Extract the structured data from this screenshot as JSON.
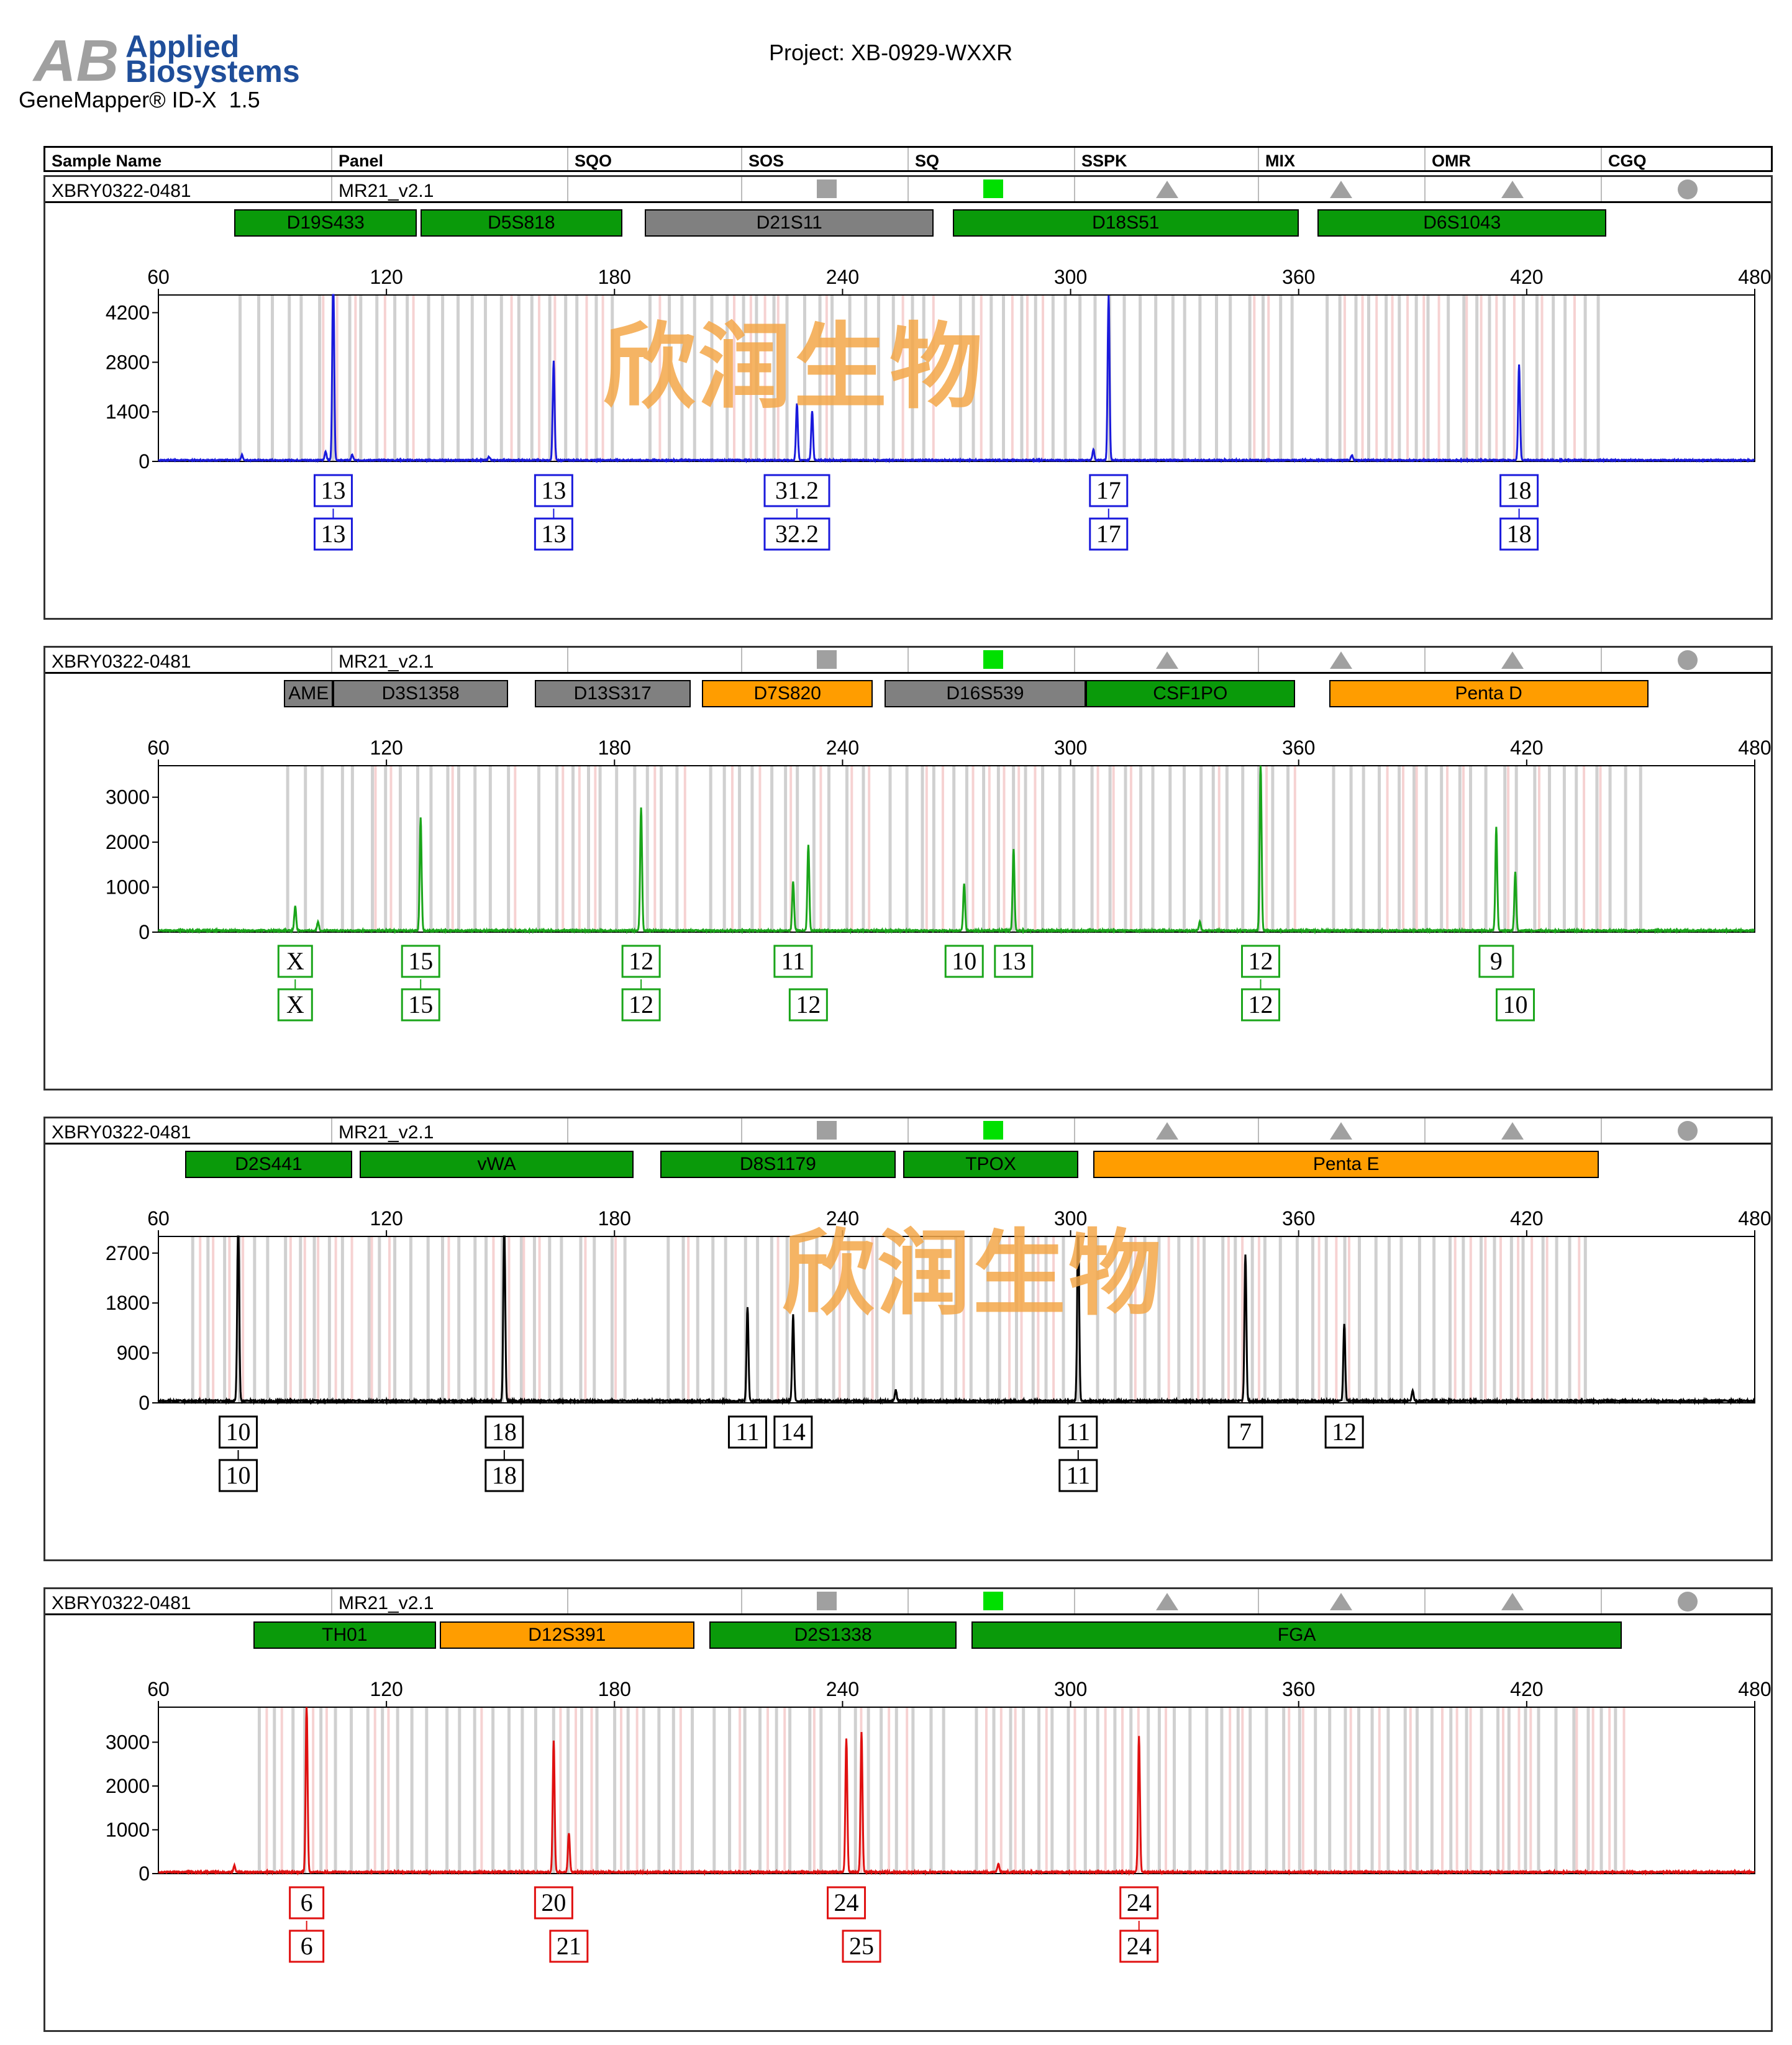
{
  "header": {
    "logo_line1": "Applied",
    "logo_line2": "Biosystems",
    "app": "GeneMapper® ID-X  1.5",
    "project": "Project: XB-0929-WXXR"
  },
  "columns": [
    "Sample Name",
    "Panel",
    "SQO",
    "SOS",
    "SQ",
    "SSPK",
    "MIX",
    "OMR",
    "CGQ"
  ],
  "watermark": "欣润生物",
  "colors": {
    "blue": "#1a1adc",
    "green": "#1aa51a",
    "black": "#000000",
    "red": "#e01010",
    "locus_green": "#0a9a0a",
    "locus_grey": "#808080",
    "locus_orange": "#ff9d00"
  },
  "chart_data": [
    {
      "type": "line",
      "dye": "blue",
      "sample": "XBRY0322-0481",
      "panel": "MR21_v2.1",
      "xlim": [
        60,
        480
      ],
      "x_ticks": [
        60,
        120,
        180,
        240,
        300,
        360,
        420,
        480
      ],
      "ylim": [
        0,
        4700
      ],
      "y_ticks": [
        0,
        1400,
        2800,
        4200
      ],
      "loci": [
        {
          "name": "D19S433",
          "range": [
            80,
            128
          ],
          "color": "locus_green"
        },
        {
          "name": "D5S818",
          "range": [
            129,
            182
          ],
          "color": "locus_green"
        },
        {
          "name": "D21S11",
          "range": [
            188,
            264
          ],
          "color": "locus_grey"
        },
        {
          "name": "D18S51",
          "range": [
            269,
            360
          ],
          "color": "locus_green"
        },
        {
          "name": "D6S1043",
          "range": [
            365,
            441
          ],
          "color": "locus_green"
        }
      ],
      "peaks": [
        [
          82,
          150
        ],
        [
          104,
          250
        ],
        [
          106,
          5400
        ],
        [
          111,
          150
        ],
        [
          147,
          100
        ],
        [
          164,
          2800
        ],
        [
          228,
          1600
        ],
        [
          232,
          1400
        ],
        [
          306,
          300
        ],
        [
          310,
          4650
        ],
        [
          374,
          150
        ],
        [
          418,
          2700
        ]
      ],
      "calls": [
        {
          "x": 106,
          "row1": "13",
          "row2": "13"
        },
        {
          "x": 164,
          "row1": "13",
          "row2": "13"
        },
        {
          "x": 228,
          "row1": "31.2",
          "row2": "32.2"
        },
        {
          "x": 310,
          "row1": "17",
          "row2": "17"
        },
        {
          "x": 418,
          "row1": "18",
          "row2": "18"
        }
      ]
    },
    {
      "type": "line",
      "dye": "green",
      "sample": "XBRY0322-0481",
      "panel": "MR21_v2.1",
      "xlim": [
        60,
        480
      ],
      "x_ticks": [
        60,
        120,
        180,
        240,
        300,
        360,
        420,
        480
      ],
      "ylim": [
        0,
        3700
      ],
      "y_ticks": [
        0,
        1000,
        2000,
        3000
      ],
      "loci": [
        {
          "name": "AME",
          "range": [
            93,
            106
          ],
          "color": "locus_grey"
        },
        {
          "name": "D3S1358",
          "range": [
            106,
            152
          ],
          "color": "locus_grey"
        },
        {
          "name": "D13S317",
          "range": [
            159,
            200
          ],
          "color": "locus_grey"
        },
        {
          "name": "D7S820",
          "range": [
            203,
            248
          ],
          "color": "locus_orange"
        },
        {
          "name": "D16S539",
          "range": [
            251,
            304
          ],
          "color": "locus_grey"
        },
        {
          "name": "CSF1PO",
          "range": [
            304,
            359
          ],
          "color": "locus_green"
        },
        {
          "name": "Penta D",
          "range": [
            368,
            452
          ],
          "color": "locus_orange"
        }
      ],
      "peaks": [
        [
          96,
          550
        ],
        [
          102,
          200
        ],
        [
          129,
          2500
        ],
        [
          187,
          2750
        ],
        [
          227,
          1100
        ],
        [
          231,
          1900
        ],
        [
          272,
          1050
        ],
        [
          285,
          1800
        ],
        [
          334,
          200
        ],
        [
          350,
          3750
        ],
        [
          412,
          2300
        ],
        [
          417,
          1300
        ]
      ],
      "calls": [
        {
          "x": 96,
          "row1": "X",
          "row2": "X"
        },
        {
          "x": 129,
          "row1": "15",
          "row2": "15"
        },
        {
          "x": 187,
          "row1": "12",
          "row2": "12"
        },
        {
          "x": 227,
          "row1": "11",
          "row2": ""
        },
        {
          "x": 231,
          "row1": "",
          "row2": "12"
        },
        {
          "x": 272,
          "row1": "10",
          "row2": ""
        },
        {
          "x": 285,
          "row1": "13",
          "row2": ""
        },
        {
          "x": 350,
          "row1": "12",
          "row2": "12"
        },
        {
          "x": 412,
          "row1": "9",
          "row2": ""
        },
        {
          "x": 417,
          "row1": "",
          "row2": "10"
        }
      ]
    },
    {
      "type": "line",
      "dye": "black",
      "sample": "XBRY0322-0481",
      "panel": "MR21_v2.1",
      "xlim": [
        60,
        480
      ],
      "x_ticks": [
        60,
        120,
        180,
        240,
        300,
        360,
        420,
        480
      ],
      "ylim": [
        0,
        3000
      ],
      "y_ticks": [
        0,
        900,
        1800,
        2700
      ],
      "loci": [
        {
          "name": "D2S441",
          "range": [
            67,
            111
          ],
          "color": "locus_green"
        },
        {
          "name": "vWA",
          "range": [
            113,
            185
          ],
          "color": "locus_green"
        },
        {
          "name": "D8S1179",
          "range": [
            192,
            254
          ],
          "color": "locus_green"
        },
        {
          "name": "TPOX",
          "range": [
            256,
            302
          ],
          "color": "locus_green"
        },
        {
          "name": "Penta E",
          "range": [
            306,
            439
          ],
          "color": "locus_orange"
        }
      ],
      "peaks": [
        [
          81,
          3500
        ],
        [
          151,
          3300
        ],
        [
          215,
          1700
        ],
        [
          227,
          1550
        ],
        [
          254,
          200
        ],
        [
          302,
          3500
        ],
        [
          346,
          2650
        ],
        [
          372,
          1400
        ],
        [
          390,
          200
        ]
      ],
      "calls": [
        {
          "x": 81,
          "row1": "10",
          "row2": "10"
        },
        {
          "x": 151,
          "row1": "18",
          "row2": "18"
        },
        {
          "x": 215,
          "row1": "11",
          "row2": ""
        },
        {
          "x": 227,
          "row1": "14",
          "row2": ""
        },
        {
          "x": 302,
          "row1": "11",
          "row2": "11"
        },
        {
          "x": 346,
          "row1": "7",
          "row2": ""
        },
        {
          "x": 372,
          "row1": "12",
          "row2": ""
        }
      ]
    },
    {
      "type": "line",
      "dye": "red",
      "sample": "XBRY0322-0481",
      "panel": "MR21_v2.1",
      "xlim": [
        60,
        480
      ],
      "x_ticks": [
        60,
        120,
        180,
        240,
        300,
        360,
        420,
        480
      ],
      "ylim": [
        0,
        3800
      ],
      "y_ticks": [
        0,
        1000,
        2000,
        3000
      ],
      "loci": [
        {
          "name": "TH01",
          "range": [
            85,
            133
          ],
          "color": "locus_green"
        },
        {
          "name": "D12S391",
          "range": [
            134,
            201
          ],
          "color": "locus_orange"
        },
        {
          "name": "D2S1338",
          "range": [
            205,
            270
          ],
          "color": "locus_green"
        },
        {
          "name": "FGA",
          "range": [
            274,
            445
          ],
          "color": "locus_green"
        }
      ],
      "peaks": [
        [
          80,
          150
        ],
        [
          99,
          3800
        ],
        [
          164,
          3000
        ],
        [
          168,
          900
        ],
        [
          241,
          3050
        ],
        [
          245,
          3200
        ],
        [
          281,
          200
        ],
        [
          318,
          3100
        ]
      ],
      "calls": [
        {
          "x": 99,
          "row1": "6",
          "row2": "6"
        },
        {
          "x": 164,
          "row1": "20",
          "row2": ""
        },
        {
          "x": 168,
          "row1": "",
          "row2": "21"
        },
        {
          "x": 241,
          "row1": "24",
          "row2": ""
        },
        {
          "x": 245,
          "row1": "",
          "row2": "25"
        },
        {
          "x": 318,
          "row1": "24",
          "row2": "24"
        }
      ]
    }
  ]
}
